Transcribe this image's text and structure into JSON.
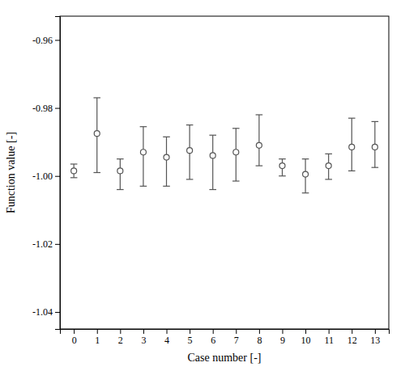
{
  "chart_data": {
    "type": "errorbar",
    "xlabel": "Case number [-]",
    "ylabel": "Function value [-]",
    "x": [
      0,
      1,
      2,
      3,
      4,
      5,
      6,
      7,
      8,
      9,
      10,
      11,
      12,
      13
    ],
    "values": [
      -0.9985,
      -0.9875,
      -0.9985,
      -0.993,
      -0.9945,
      -0.9925,
      -0.994,
      -0.993,
      -0.991,
      -0.997,
      -0.9995,
      -0.997,
      -0.9915,
      -0.9915
    ],
    "lower_err": [
      0.002,
      0.0115,
      0.0055,
      0.01,
      0.0085,
      0.0085,
      0.01,
      0.0085,
      0.006,
      0.003,
      0.0055,
      0.004,
      0.007,
      0.006
    ],
    "upper_err": [
      0.002,
      0.0105,
      0.0035,
      0.0075,
      0.006,
      0.0075,
      0.006,
      0.007,
      0.009,
      0.002,
      0.0045,
      0.0035,
      0.0085,
      0.0075
    ],
    "xlim": [
      -0.6,
      13.6
    ],
    "xticks": [
      0,
      1,
      2,
      3,
      4,
      5,
      6,
      7,
      8,
      9,
      10,
      11,
      12,
      13
    ],
    "ylim": [
      -1.045,
      -0.953
    ],
    "yticks": [
      -1.04,
      -1.02,
      {
        "value": -1.0,
        "label": "-1.00"
      },
      -0.98,
      -0.96
    ],
    "color": "#555555",
    "marker": "open-circle",
    "grid": false
  }
}
